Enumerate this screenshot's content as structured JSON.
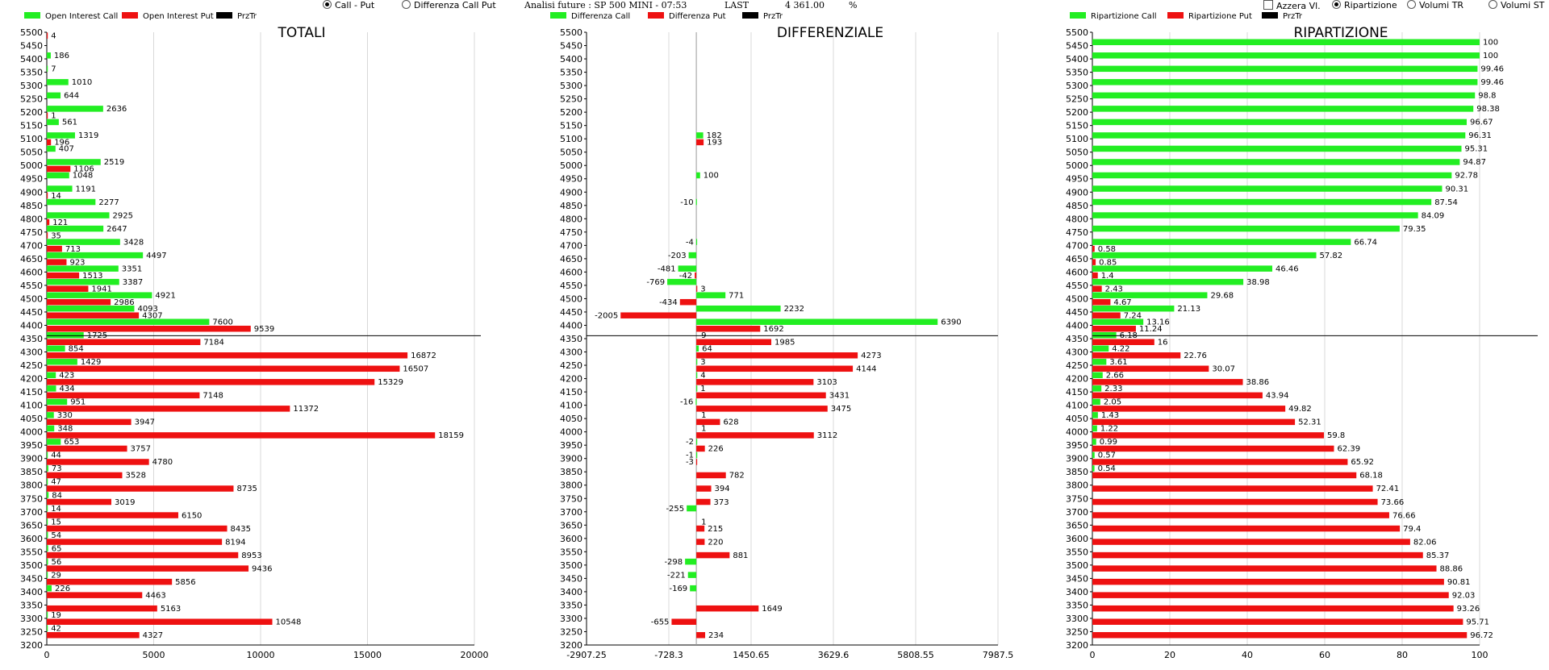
{
  "header": {
    "radio_call_put": "Call - Put",
    "radio_diff_call_put": "Differenza Call Put",
    "future_label": "Analisi future : SP 500 MINI - 07:53",
    "last_label": "LAST",
    "last_value": "4 361.00",
    "pct_label": "%",
    "check_azzera": "Azzera Vl.",
    "radio_ripartizione": "Ripartizione",
    "radio_volumi_tr": "Volumi TR",
    "radio_volumi_st": "Volumi ST"
  },
  "colors": {
    "call": "#22ee22",
    "put": "#ee1111",
    "price": "#000000",
    "grid": "#d8d8d8"
  },
  "chart_data": [
    {
      "type": "bar",
      "orientation": "horizontal",
      "title": "TOTALI",
      "legend": [
        "Open Interest Call",
        "Open Interest Put",
        "PrzTr"
      ],
      "categories": [
        "5500",
        "5450",
        "5400",
        "5350",
        "5300",
        "5250",
        "5200",
        "5150",
        "5100",
        "5050",
        "5000",
        "4950",
        "4900",
        "4850",
        "4800",
        "4750",
        "4700",
        "4650",
        "4600",
        "4550",
        "4500",
        "4450",
        "4400",
        "4350",
        "4300",
        "4250",
        "4200",
        "4150",
        "4100",
        "4050",
        "4000",
        "3950",
        "3900",
        "3850",
        "3800",
        "3750",
        "3700",
        "3650",
        "3600",
        "3550",
        "3500",
        "3450",
        "3400",
        "3350",
        "3300",
        "3250",
        "3200"
      ],
      "series": [
        {
          "name": "Open Interest Call",
          "values": [
            null,
            null,
            186,
            7,
            1010,
            644,
            2636,
            561,
            1319,
            407,
            2519,
            1048,
            1191,
            2277,
            2925,
            2647,
            3428,
            4497,
            3351,
            3387,
            4921,
            4093,
            7600,
            1725,
            854,
            1429,
            423,
            434,
            951,
            330,
            348,
            653,
            44,
            73,
            47,
            84,
            14,
            15,
            54,
            65,
            56,
            29,
            226,
            null,
            19,
            42,
            null
          ]
        },
        {
          "name": "Open Interest Put",
          "values": [
            4,
            null,
            null,
            null,
            null,
            null,
            1,
            null,
            196,
            null,
            1106,
            null,
            14,
            null,
            121,
            35,
            713,
            923,
            1513,
            1941,
            2986,
            4307,
            9539,
            7184,
            16872,
            16507,
            15329,
            7148,
            11372,
            3947,
            18159,
            3757,
            4780,
            3528,
            8735,
            3019,
            6150,
            8435,
            8194,
            8953,
            9436,
            5856,
            4463,
            5163,
            10548,
            4327,
            null
          ]
        }
      ],
      "price_level": "4361",
      "xlim": [
        0,
        20000
      ],
      "xticks": [
        "0",
        "5000",
        "10000",
        "15000",
        "20000"
      ]
    },
    {
      "type": "bar",
      "orientation": "horizontal",
      "title": "DIFFERENZIALE",
      "legend": [
        "Differenza Call",
        "Differenza Put",
        "PrzTr"
      ],
      "categories": [
        "5500",
        "5450",
        "5400",
        "5350",
        "5300",
        "5250",
        "5200",
        "5150",
        "5100",
        "5050",
        "5000",
        "4950",
        "4900",
        "4850",
        "4800",
        "4750",
        "4700",
        "4650",
        "4600",
        "4550",
        "4500",
        "4450",
        "4400",
        "4350",
        "4300",
        "4250",
        "4200",
        "4150",
        "4100",
        "4050",
        "4000",
        "3950",
        "3900",
        "3850",
        "3800",
        "3750",
        "3700",
        "3650",
        "3600",
        "3550",
        "3500",
        "3450",
        "3400",
        "3350",
        "3300",
        "3250",
        "3200"
      ],
      "series": [
        {
          "name": "Differenza Call",
          "values": [
            null,
            null,
            null,
            null,
            null,
            null,
            null,
            null,
            182,
            null,
            null,
            100,
            null,
            -10,
            null,
            null,
            -4,
            -203,
            -481,
            -769,
            771,
            2232,
            6390,
            null,
            64,
            3,
            4,
            1,
            -16,
            null,
            null,
            -2,
            -1,
            null,
            null,
            null,
            -255,
            null,
            null,
            null,
            -298,
            -221,
            -169,
            null,
            null,
            null,
            null
          ]
        },
        {
          "name": "Differenza Put",
          "values": [
            null,
            null,
            null,
            null,
            null,
            null,
            null,
            null,
            193,
            null,
            null,
            null,
            null,
            null,
            null,
            null,
            null,
            null,
            -42,
            3,
            -434,
            -2005,
            1692,
            1985,
            4273,
            4144,
            3103,
            3431,
            3475,
            628,
            3112,
            226,
            -3,
            782,
            394,
            373,
            null,
            215,
            220,
            881,
            null,
            null,
            null,
            1649,
            -655,
            234,
            null
          ]
        }
      ],
      "extra_labels": [
        {
          "category": "4350",
          "text": "9"
        },
        {
          "category": "3650",
          "text": "1"
        },
        {
          "category": "4050",
          "text": "1"
        },
        {
          "category": "4000",
          "text": "1"
        }
      ],
      "price_level": "4361",
      "xlim": [
        -2907.25,
        7987.5
      ],
      "xticks": [
        "-2907.25",
        "-728.3",
        "1450.65",
        "3629.6",
        "5808.55",
        "7987.5"
      ]
    },
    {
      "type": "bar",
      "orientation": "horizontal",
      "title": "RIPARTIZIONE",
      "legend": [
        "Ripartizione Call",
        "Ripartizione Put",
        "PrzTr"
      ],
      "categories": [
        "5500",
        "5450",
        "5400",
        "5350",
        "5300",
        "5250",
        "5200",
        "5150",
        "5100",
        "5050",
        "5000",
        "4950",
        "4900",
        "4850",
        "4800",
        "4750",
        "4700",
        "4650",
        "4600",
        "4550",
        "4500",
        "4450",
        "4400",
        "4350",
        "4300",
        "4250",
        "4200",
        "4150",
        "4100",
        "4050",
        "4000",
        "3950",
        "3900",
        "3850",
        "3800",
        "3750",
        "3700",
        "3650",
        "3600",
        "3550",
        "3500",
        "3450",
        "3400",
        "3350",
        "3300",
        "3250",
        "3200"
      ],
      "series": [
        {
          "name": "Ripartizione Call",
          "values": [
            null,
            100,
            100,
            99.46,
            99.46,
            98.8,
            98.38,
            96.67,
            96.31,
            95.31,
            94.87,
            92.78,
            90.31,
            87.54,
            84.09,
            79.35,
            66.74,
            57.82,
            46.46,
            38.98,
            29.68,
            21.13,
            13.16,
            6.18,
            4.22,
            3.61,
            2.66,
            2.33,
            2.05,
            1.43,
            1.22,
            0.99,
            0.57,
            0.54,
            null,
            null,
            null,
            null,
            null,
            null,
            null,
            null,
            null,
            null,
            null,
            null,
            null
          ]
        },
        {
          "name": "Ripartizione Put",
          "values": [
            null,
            null,
            null,
            null,
            null,
            null,
            null,
            null,
            null,
            null,
            null,
            null,
            null,
            null,
            null,
            null,
            0.58,
            0.85,
            1.4,
            2.43,
            4.67,
            7.24,
            11.24,
            16,
            22.76,
            30.07,
            38.86,
            43.94,
            49.82,
            52.31,
            59.8,
            62.39,
            65.92,
            68.18,
            72.41,
            73.66,
            76.66,
            79.4,
            82.06,
            85.37,
            88.86,
            90.81,
            92.03,
            93.26,
            95.71,
            96.72,
            null
          ]
        }
      ],
      "price_level": "4361",
      "xlim": [
        0,
        100
      ],
      "xticks": [
        "0",
        "20",
        "40",
        "60",
        "80",
        "100"
      ]
    }
  ]
}
